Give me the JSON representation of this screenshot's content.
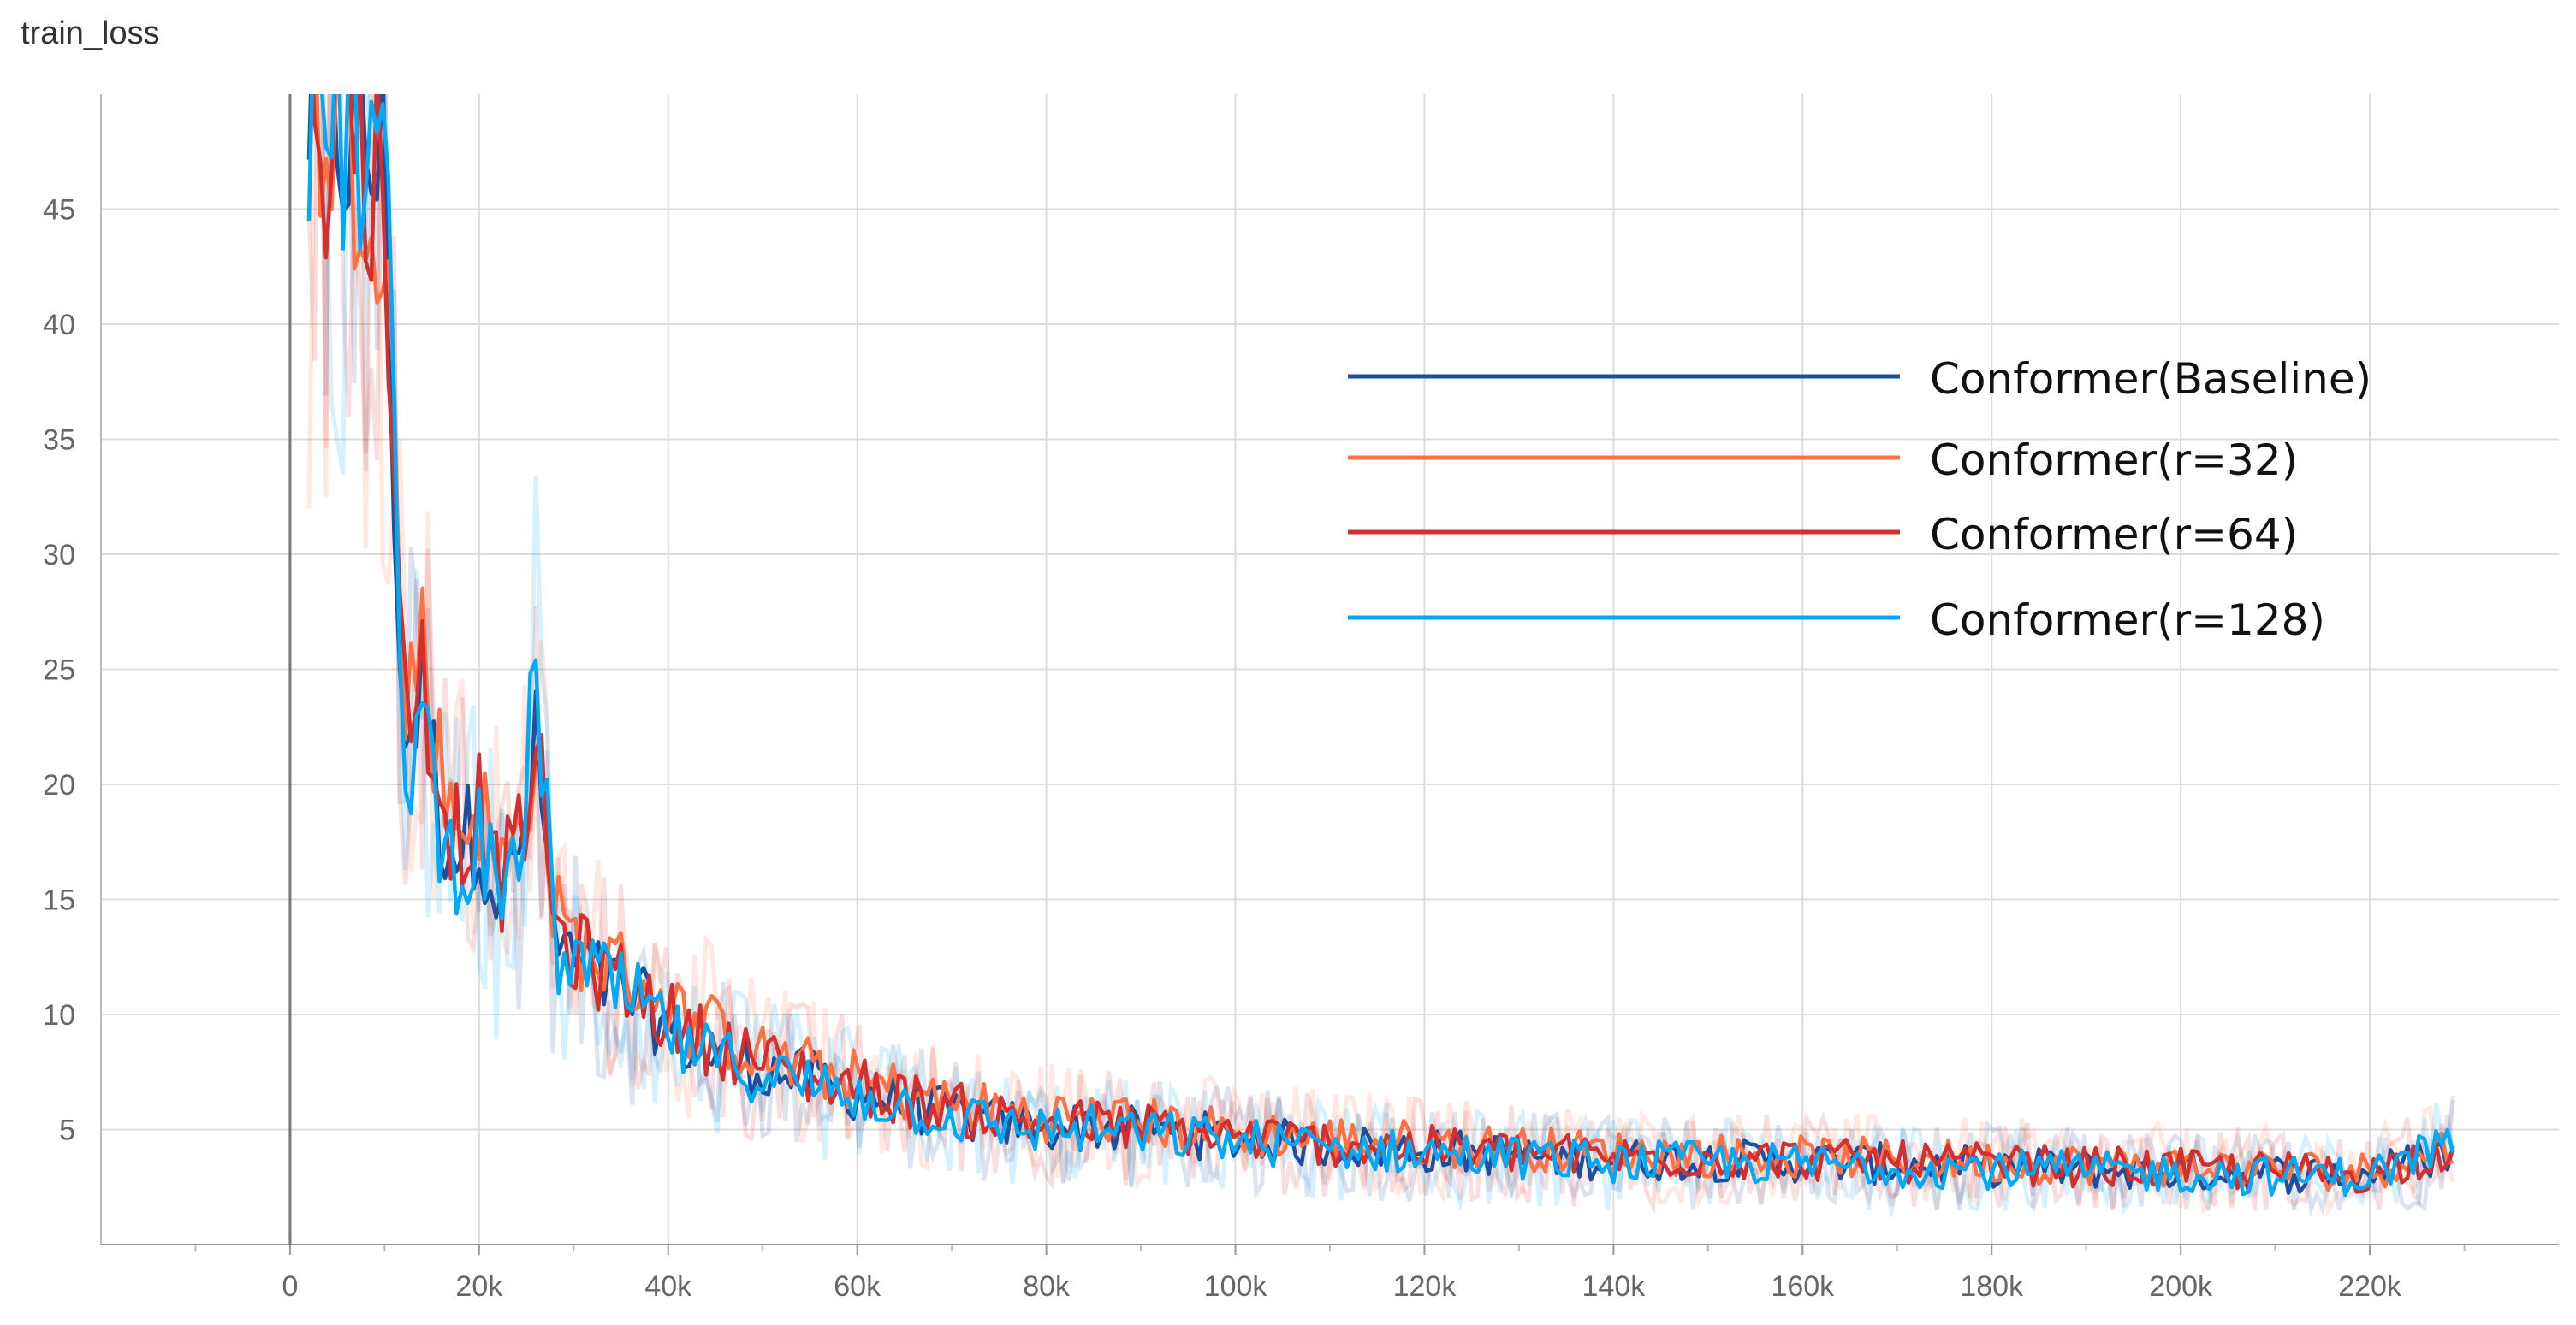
{
  "chart_data": {
    "type": "line",
    "title": "train_loss",
    "xlabel": "",
    "ylabel": "",
    "x_ticks": [
      "0",
      "20k",
      "40k",
      "60k",
      "80k",
      "100k",
      "120k",
      "140k",
      "160k",
      "180k",
      "200k",
      "220k"
    ],
    "y_ticks": [
      "5",
      "10",
      "15",
      "20",
      "25",
      "30",
      "35",
      "40",
      "45"
    ],
    "xlim": [
      -20000,
      240000
    ],
    "ylim": [
      0,
      50
    ],
    "grid": true,
    "legend_position": "top-right",
    "series": [
      {
        "name": "Conformer(Baseline)",
        "color": "#1f4e9c",
        "x": [
          2000,
          6000,
          10000,
          12000,
          14000,
          16000,
          18000,
          20000,
          22000,
          24000,
          26000,
          28000,
          30000,
          34000,
          38000,
          42000,
          46000,
          50000,
          55000,
          60000,
          65000,
          70000,
          75000,
          80000,
          85000,
          90000,
          95000,
          100000,
          110000,
          120000,
          130000,
          140000,
          150000,
          160000,
          170000,
          180000,
          190000,
          200000,
          210000,
          220000,
          229000
        ],
        "y": [
          49,
          48,
          46,
          21,
          24,
          18,
          17,
          18,
          15,
          16,
          21,
          13,
          12,
          11,
          10,
          8.5,
          8,
          7.5,
          7,
          6.5,
          6,
          5.5,
          5.2,
          5,
          5,
          4.8,
          4.7,
          4.5,
          4.2,
          4,
          3.8,
          3.6,
          3.6,
          3.5,
          3.4,
          3.3,
          3.2,
          3.1,
          3,
          3,
          4
        ]
      },
      {
        "name": "Conformer(r=32)",
        "color": "#ff7043",
        "x": [
          2000,
          6000,
          10000,
          12000,
          14000,
          16000,
          18000,
          20000,
          22000,
          24000,
          26000,
          28000,
          30000,
          34000,
          38000,
          42000,
          46000,
          50000,
          55000,
          60000,
          65000,
          70000,
          75000,
          80000,
          85000,
          90000,
          95000,
          100000,
          110000,
          120000,
          130000,
          140000,
          150000,
          160000,
          170000,
          180000,
          190000,
          200000,
          210000,
          220000,
          229000
        ],
        "y": [
          49,
          48,
          46,
          23,
          26,
          20,
          18,
          19,
          16,
          17,
          22,
          14,
          13,
          12,
          11,
          9.5,
          9,
          8,
          7.5,
          7,
          6.5,
          6,
          5.7,
          5.5,
          5.4,
          5.2,
          5,
          4.8,
          4.5,
          4.3,
          4.1,
          3.9,
          3.8,
          3.7,
          3.6,
          3.5,
          3.4,
          3.3,
          3.2,
          3.1,
          4.3
        ]
      },
      {
        "name": "Conformer(r=64)",
        "color": "#d32f2f",
        "x": [
          2000,
          6000,
          10000,
          12000,
          14000,
          16000,
          18000,
          20000,
          22000,
          24000,
          26000,
          28000,
          30000,
          34000,
          38000,
          42000,
          46000,
          50000,
          55000,
          60000,
          65000,
          70000,
          75000,
          80000,
          85000,
          90000,
          95000,
          100000,
          110000,
          120000,
          130000,
          140000,
          150000,
          160000,
          170000,
          180000,
          190000,
          200000,
          210000,
          220000,
          229000
        ],
        "y": [
          49,
          48,
          46,
          22,
          25,
          19,
          17.5,
          18.5,
          15.5,
          16.5,
          21.5,
          13.5,
          12.5,
          11.5,
          10.5,
          9,
          8.5,
          7.8,
          7.2,
          6.8,
          6.2,
          5.8,
          5.4,
          5.2,
          5.1,
          5,
          4.8,
          4.6,
          4.3,
          4.1,
          3.9,
          3.7,
          3.7,
          3.6,
          3.5,
          3.4,
          3.3,
          3.2,
          3.1,
          3,
          4.2
        ]
      },
      {
        "name": "Conformer(r=128)",
        "color": "#03a9f4",
        "x": [
          2000,
          6000,
          10000,
          12000,
          14000,
          16000,
          18000,
          20000,
          22000,
          24000,
          26000,
          28000,
          30000,
          34000,
          38000,
          42000,
          46000,
          50000,
          55000,
          60000,
          65000,
          70000,
          75000,
          80000,
          85000,
          90000,
          95000,
          100000,
          110000,
          120000,
          130000,
          140000,
          150000,
          160000,
          170000,
          180000,
          190000,
          200000,
          210000,
          220000,
          229000
        ],
        "y": [
          49,
          48,
          46,
          20,
          23,
          17,
          16.5,
          17.5,
          14.5,
          15.5,
          25,
          12.5,
          12,
          11,
          10,
          8.3,
          7.8,
          7.3,
          6.8,
          6.4,
          5.9,
          5.4,
          5.1,
          4.9,
          4.9,
          4.7,
          4.6,
          4.4,
          4.1,
          3.9,
          3.7,
          3.5,
          3.5,
          3.4,
          3.3,
          3.2,
          3.1,
          3,
          2.9,
          2.9,
          4.5
        ]
      }
    ]
  }
}
